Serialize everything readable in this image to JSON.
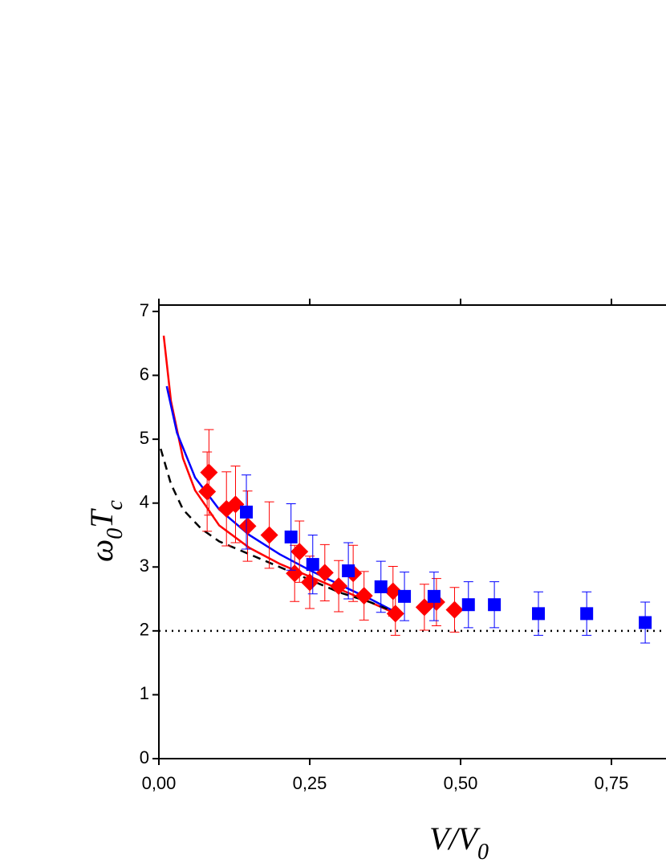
{
  "chart_data": {
    "type": "scatter",
    "x_label_parts": [
      "V/V",
      "0"
    ],
    "y_label_parts": [
      "ω",
      "0",
      "T",
      "c"
    ],
    "xlim": [
      0,
      1.0
    ],
    "ylim": [
      0,
      7.1
    ],
    "xticks": [
      {
        "value": 0,
        "label": "0,00"
      },
      {
        "value": 0.25,
        "label": "0,25"
      },
      {
        "value": 0.5,
        "label": "0,50"
      },
      {
        "value": 0.75,
        "label": "0,75"
      }
    ],
    "yticks": [
      0,
      1,
      2,
      3,
      4,
      5,
      6,
      7
    ],
    "series": [
      {
        "color": "#ff0000",
        "marker": "diamond",
        "x": [
          0.08,
          0.083,
          0.112,
          0.127,
          0.147,
          0.183,
          0.225,
          0.233,
          0.25,
          0.275,
          0.298,
          0.322,
          0.34,
          0.388,
          0.392,
          0.44,
          0.46,
          0.49
        ],
        "values": [
          4.18,
          4.48,
          3.91,
          3.98,
          3.64,
          3.5,
          2.9,
          3.24,
          2.76,
          2.91,
          2.7,
          2.9,
          2.55,
          2.62,
          2.27,
          2.37,
          2.45,
          2.33
        ],
        "errors": [
          0.62,
          0.67,
          0.58,
          0.6,
          0.55,
          0.52,
          0.44,
          0.48,
          0.41,
          0.44,
          0.4,
          0.44,
          0.38,
          0.39,
          0.34,
          0.36,
          0.37,
          0.35
        ]
      },
      {
        "color": "#0000ff",
        "marker": "square",
        "x": [
          0.145,
          0.219,
          0.255,
          0.314,
          0.368,
          0.407,
          0.456,
          0.513,
          0.556,
          0.629,
          0.709,
          0.806
        ],
        "values": [
          3.86,
          3.47,
          3.04,
          2.94,
          2.69,
          2.54,
          2.54,
          2.41,
          2.41,
          2.27,
          2.27,
          2.13
        ],
        "errors": [
          0.58,
          0.52,
          0.46,
          0.44,
          0.4,
          0.38,
          0.38,
          0.36,
          0.36,
          0.34,
          0.34,
          0.32
        ]
      },
      {
        "color": "#ff0000",
        "line": "solid",
        "x": [
          0.008,
          0.02,
          0.04,
          0.06,
          0.1,
          0.15,
          0.2,
          0.25,
          0.3,
          0.35,
          0.39
        ],
        "values": [
          6.62,
          5.6,
          4.7,
          4.2,
          3.65,
          3.3,
          3.05,
          2.85,
          2.65,
          2.45,
          2.28
        ]
      },
      {
        "color": "#0000ff",
        "line": "solid",
        "x": [
          0.013,
          0.03,
          0.06,
          0.1,
          0.15,
          0.2,
          0.25,
          0.3,
          0.35,
          0.385
        ],
        "values": [
          5.83,
          5.1,
          4.4,
          3.9,
          3.5,
          3.2,
          2.95,
          2.72,
          2.5,
          2.33
        ]
      },
      {
        "color": "#000000",
        "line": "dashed",
        "x": [
          0.003,
          0.02,
          0.04,
          0.07,
          0.1,
          0.15,
          0.2,
          0.25,
          0.3,
          0.35,
          0.39
        ],
        "values": [
          4.85,
          4.3,
          3.9,
          3.6,
          3.4,
          3.2,
          3.0,
          2.8,
          2.6,
          2.45,
          2.3
        ]
      },
      {
        "color": "#000000",
        "line": "dotted",
        "x": [
          0,
          1.0
        ],
        "values": [
          2,
          2
        ]
      }
    ]
  }
}
